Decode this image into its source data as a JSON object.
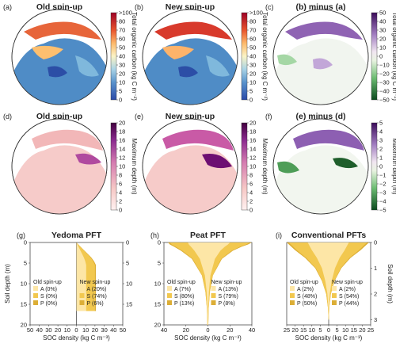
{
  "maps_top": {
    "panels": [
      {
        "label": "(a)",
        "title": "Old spin-up"
      },
      {
        "label": "(b)",
        "title": "New spin-up"
      },
      {
        "label": "(c)",
        "title": "(b) minus (a)"
      }
    ],
    "colorbar_abs": {
      "ticks": [
        ">100",
        "80",
        "70",
        "60",
        "50",
        "40",
        "30",
        "20",
        "10",
        "5",
        "0"
      ],
      "label": "Total organic carbon (kg C m⁻²)"
    },
    "colorbar_diff": {
      "ticks": [
        "50",
        "40",
        "30",
        "20",
        "10",
        "0",
        "−10",
        "−20",
        "−30",
        "−40",
        "−50"
      ],
      "label": "Total organic carbon (kg C m⁻²)"
    }
  },
  "maps_mid": {
    "panels": [
      {
        "label": "(d)",
        "title": "Old spin-up"
      },
      {
        "label": "(e)",
        "title": "New spin-up"
      },
      {
        "label": "(f)",
        "title": "(e) minus (d)"
      }
    ],
    "colorbar_abs": {
      "ticks": [
        "20",
        "18",
        "16",
        "14",
        "12",
        "10",
        "8",
        "6",
        "4",
        "2",
        "0"
      ],
      "label": "Maximum depth (m)"
    },
    "colorbar_diff": {
      "ticks": [
        "5",
        "4",
        "3",
        "2",
        "1",
        "0",
        "−1",
        "−2",
        "−3",
        "−4",
        "−5"
      ],
      "label": "Maximum depth (m)"
    }
  },
  "chart_data": [
    {
      "type": "area",
      "label": "(g)",
      "title": "Yedoma PFT",
      "xlabel": "SOC density (kg C m⁻³)",
      "ylabel_left": "Soil depth (m)",
      "ylabel_right": "",
      "x_ticks": [
        "50",
        "40",
        "30",
        "20",
        "10",
        "0",
        "10",
        "20",
        "30",
        "40",
        "50"
      ],
      "y_left_ticks": [
        "0",
        "5",
        "10",
        "15",
        "20"
      ],
      "y_right_ticks": [
        "0",
        "5",
        "10",
        "15"
      ],
      "old": {
        "title": "Old spin-up",
        "entries": [
          {
            "key": "A",
            "pct": "A (0%)"
          },
          {
            "key": "S",
            "pct": "S (0%)"
          },
          {
            "key": "P",
            "pct": "P (0%)"
          }
        ],
        "depth": [
          0,
          20
        ],
        "total": [
          0,
          0
        ]
      },
      "new": {
        "title": "New spin-up",
        "entries": [
          {
            "key": "A",
            "pct": "A (20%)"
          },
          {
            "key": "S",
            "pct": "S (74%)"
          },
          {
            "key": "P",
            "pct": "P (6%)"
          }
        ],
        "depth": [
          0,
          1,
          2,
          3,
          4,
          5,
          6,
          8,
          10,
          15,
          18.3,
          18.3
        ],
        "total": [
          0,
          4,
          8,
          12,
          16,
          19,
          21,
          21,
          21,
          21,
          21,
          0
        ]
      }
    },
    {
      "type": "area",
      "label": "(h)",
      "title": "Peat PFT",
      "xlabel": "SOC density (kg C m⁻³)",
      "x_ticks": [
        "40",
        "20",
        "0",
        "20",
        "40"
      ],
      "y_ticks": [
        "0",
        "5",
        "10",
        "15",
        "20"
      ],
      "old": {
        "title": "Old spin-up",
        "entries": [
          {
            "key": "A",
            "pct": "A (7%)"
          },
          {
            "key": "S",
            "pct": "S (80%)"
          },
          {
            "key": "P",
            "pct": "P (13%)"
          }
        ],
        "depth": [
          0,
          0.5,
          1,
          2,
          4,
          8,
          12,
          16,
          20
        ],
        "total": [
          40,
          38,
          34,
          27,
          16,
          6,
          2.5,
          1,
          0.5
        ]
      },
      "new": {
        "title": "New spin-up",
        "entries": [
          {
            "key": "A",
            "pct": "A (13%)"
          },
          {
            "key": "S",
            "pct": "S (79%)"
          },
          {
            "key": "P",
            "pct": "P (8%)"
          }
        ],
        "depth": [
          0,
          0.5,
          1,
          2,
          4,
          8,
          12,
          16,
          20
        ],
        "total": [
          44,
          40,
          34,
          25,
          14,
          5,
          2,
          0.8,
          0.4
        ]
      }
    },
    {
      "type": "area",
      "label": "(i)",
      "title": "Conventional PFTs",
      "xlabel": "SOC density (kg C m⁻³)",
      "ylabel_right": "Soil depth (m)",
      "x_ticks": [
        "25",
        "20",
        "15",
        "10",
        "5",
        "0",
        "5",
        "10",
        "15",
        "20",
        "25"
      ],
      "y_ticks": [
        "0",
        "1",
        "2",
        "3"
      ],
      "old": {
        "title": "Old spin-up",
        "entries": [
          {
            "key": "A",
            "pct": "A (2%)"
          },
          {
            "key": "S",
            "pct": "S (48%)"
          },
          {
            "key": "P",
            "pct": "P (50%)"
          }
        ],
        "depth": [
          0,
          0.3,
          0.6,
          1,
          1.5,
          2,
          2.5,
          3
        ],
        "total": [
          25,
          20,
          14,
          8,
          4,
          1.5,
          0.5,
          0.1
        ]
      },
      "new": {
        "title": "New spin-up",
        "entries": [
          {
            "key": "A",
            "pct": "A (2%)"
          },
          {
            "key": "S",
            "pct": "S (54%)"
          },
          {
            "key": "P",
            "pct": "P (44%)"
          }
        ],
        "depth": [
          0,
          0.3,
          0.6,
          1,
          1.5,
          2,
          2.5,
          3
        ],
        "total": [
          24,
          19,
          13,
          7.5,
          3.5,
          1.3,
          0.4,
          0.1
        ]
      }
    }
  ],
  "colors": {
    "A": "#fde6a6",
    "S": "#f2c84f",
    "P": "#dcae36",
    "map_land_light": "#cfe4f0",
    "map_ocean": "#ffffff"
  }
}
